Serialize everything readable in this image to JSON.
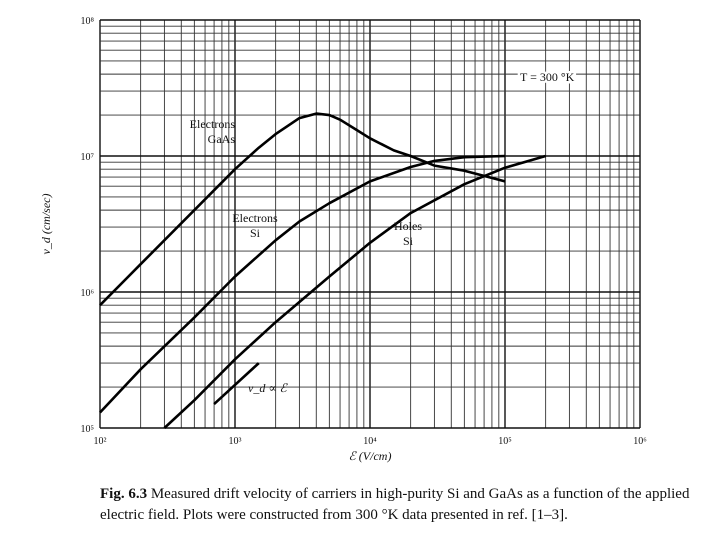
{
  "chart_data": {
    "type": "line",
    "title": "",
    "xlabel": "ℰ (V/cm)",
    "ylabel": "v_d (cm/sec)",
    "xscale": "log",
    "yscale": "log",
    "xlim": [
      100,
      1000000
    ],
    "ylim": [
      100000,
      100000000
    ],
    "grid": true,
    "x_tick_labels": [
      "10²",
      "10³",
      "10⁴",
      "10⁵",
      "10⁶"
    ],
    "y_tick_labels": [
      "10⁵",
      "10⁶",
      "10⁷",
      "10⁸"
    ],
    "temperature_label": "T = 300 °K",
    "series": [
      {
        "name": "Electrons GaAs",
        "label_lines": [
          "Electrons",
          "GaAs"
        ],
        "x": [
          100,
          200,
          500,
          1000,
          1500,
          2000,
          3000,
          4000,
          5000,
          6000,
          8000,
          10000,
          15000,
          20000,
          30000,
          50000,
          100000
        ],
        "y": [
          800000,
          1600000,
          4000000,
          8000000,
          11500000,
          14500000,
          19000000,
          20500000,
          20000000,
          18500000,
          15500000,
          13500000,
          11000000,
          10000000,
          8500000,
          7800000,
          6500000
        ]
      },
      {
        "name": "Electrons Si",
        "label_lines": [
          "Electrons",
          "Si"
        ],
        "x": [
          100,
          200,
          500,
          1000,
          2000,
          3000,
          5000,
          10000,
          20000,
          30000,
          50000,
          100000
        ],
        "y": [
          130000,
          270000,
          650000,
          1300000,
          2400000,
          3300000,
          4500000,
          6500000,
          8300000,
          9200000,
          9800000,
          10000000
        ]
      },
      {
        "name": "Holes Si",
        "label_lines": [
          "Holes",
          "Si"
        ],
        "x": [
          300,
          500,
          1000,
          2000,
          5000,
          10000,
          20000,
          50000,
          100000,
          200000
        ],
        "y": [
          100000,
          160000,
          320000,
          600000,
          1300000,
          2300000,
          3800000,
          6200000,
          8200000,
          10000000
        ]
      }
    ],
    "annotation": {
      "text": "v_d ∝ ℰ",
      "x": [
        700,
        1500
      ],
      "y": [
        150000,
        300000
      ]
    }
  },
  "caption": {
    "fig": "Fig. 6.3",
    "text": "Measured drift velocity of carriers in high-purity Si and GaAs as a function of the applied electric field. Plots were constructed from 300 °K data presented in ref. [1–3]."
  }
}
